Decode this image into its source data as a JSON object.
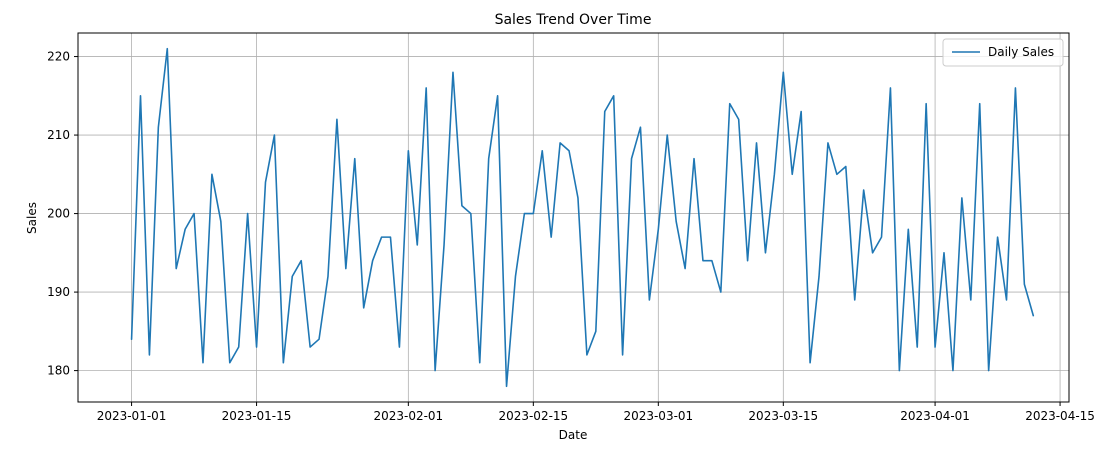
{
  "chart_data": {
    "type": "line",
    "title": "Sales Trend Over Time",
    "xlabel": "Date",
    "ylabel": "Sales",
    "grid": true,
    "legend_position": "top-right",
    "x_start": "2023-01-01",
    "x_range": [
      "2022-12-26",
      "2023-04-16"
    ],
    "ylim": [
      176,
      223
    ],
    "x_ticks": [
      "2023-01-01",
      "2023-01-15",
      "2023-02-01",
      "2023-02-15",
      "2023-03-01",
      "2023-03-15",
      "2023-04-01",
      "2023-04-15"
    ],
    "y_ticks": [
      180,
      190,
      200,
      210,
      220
    ],
    "series": [
      {
        "name": "Daily Sales",
        "color": "#1f77b4",
        "values": [
          184,
          215,
          182,
          211,
          221,
          193,
          198,
          200,
          181,
          205,
          199,
          181,
          183,
          200,
          183,
          204,
          210,
          181,
          192,
          194,
          183,
          184,
          192,
          212,
          193,
          207,
          188,
          194,
          197,
          197,
          183,
          208,
          196,
          216,
          180,
          196,
          218,
          201,
          200,
          181,
          207,
          215,
          178,
          192,
          200,
          200,
          208,
          197,
          209,
          208,
          202,
          182,
          185,
          213,
          215,
          182,
          207,
          211,
          189,
          198,
          210,
          199,
          193,
          207,
          194,
          194,
          190,
          214,
          212,
          194,
          209,
          195,
          205,
          218,
          205,
          213,
          181,
          192,
          209,
          205,
          206,
          189,
          203,
          195,
          197,
          216,
          180,
          198,
          183,
          214,
          183,
          195,
          180,
          202,
          189,
          214,
          180,
          197,
          189,
          216,
          191,
          187
        ]
      }
    ]
  }
}
